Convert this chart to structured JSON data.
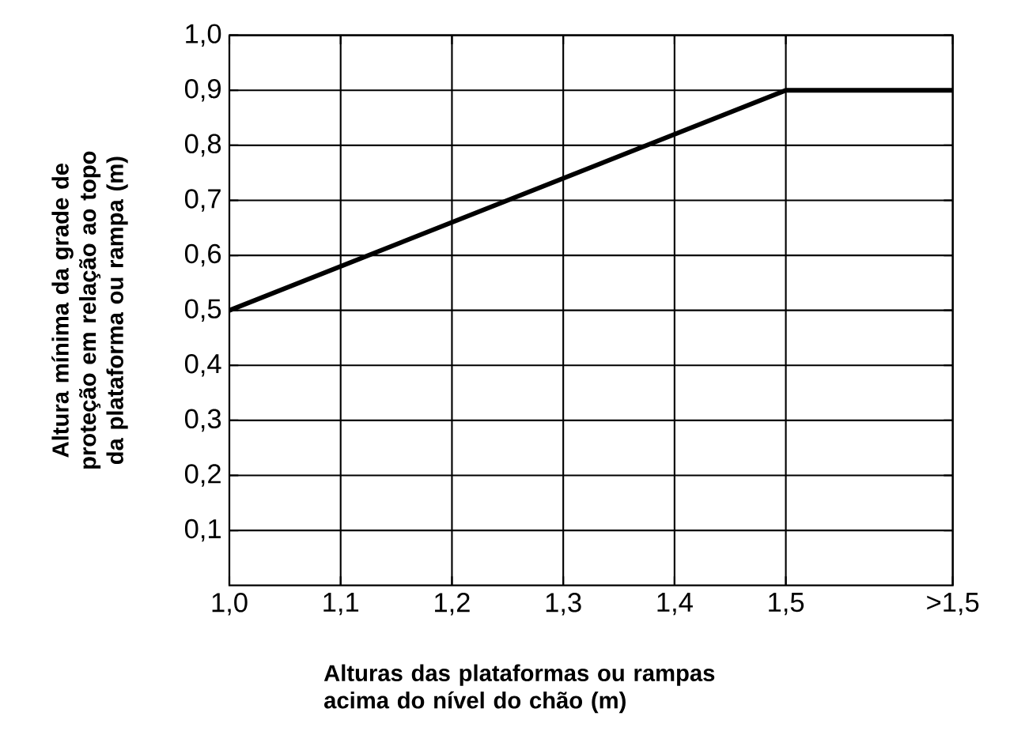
{
  "chart_data": {
    "type": "line",
    "xlabel": "Alturas das plataformas ou rampas acima do nível do chão (m)",
    "ylabel": "Altura mínima da grade de proteção em relação ao topo da plataforma ou rampa (m)",
    "x": [
      1.0,
      1.5,
      1.65
    ],
    "values": [
      0.5,
      0.9,
      0.9
    ],
    "color": "#000000",
    "xlim": [
      1.0,
      1.65
    ],
    "ylim": [
      0,
      1.0
    ],
    "xticks": [
      {
        "value": 1.0,
        "label": "1,0"
      },
      {
        "value": 1.1,
        "label": "1,1"
      },
      {
        "value": 1.2,
        "label": "1,2"
      },
      {
        "value": 1.3,
        "label": "1,3"
      },
      {
        "value": 1.4,
        "label": "1,4"
      },
      {
        "value": 1.5,
        "label": "1,5"
      },
      {
        "value": 1.65,
        "label": ">1,5"
      }
    ],
    "yticks": [
      {
        "value": 0.1,
        "label": "0,1"
      },
      {
        "value": 0.2,
        "label": "0,2"
      },
      {
        "value": 0.3,
        "label": "0,3"
      },
      {
        "value": 0.4,
        "label": "0,4"
      },
      {
        "value": 0.5,
        "label": "0,5"
      },
      {
        "value": 0.6,
        "label": "0,6"
      },
      {
        "value": 0.7,
        "label": "0,7"
      },
      {
        "value": 0.8,
        "label": "0,8"
      },
      {
        "value": 0.9,
        "label": "0,9"
      },
      {
        "value": 1.0,
        "label": "1,0"
      }
    ],
    "grid": true
  }
}
